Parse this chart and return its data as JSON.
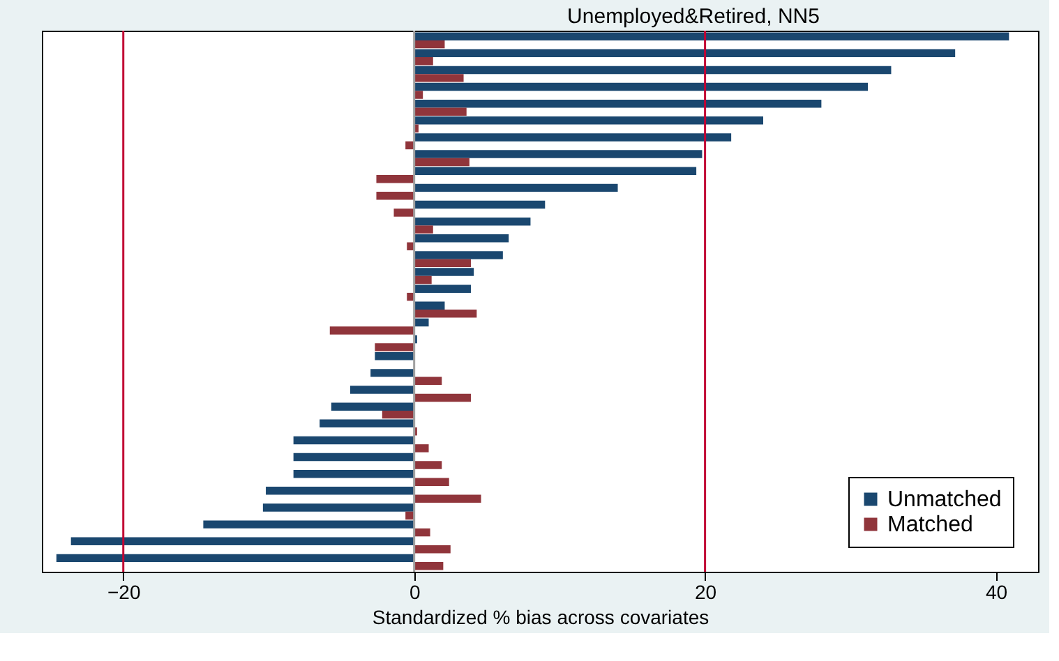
{
  "chart_data": {
    "type": "bar",
    "orientation": "horizontal",
    "title": "Unemployed&Retired, NN5",
    "xlabel": "Standardized % bias across covariates",
    "categories": [
      null,
      null,
      null,
      null,
      null,
      null,
      null,
      null,
      null,
      null,
      null,
      null,
      null,
      null,
      null,
      null,
      null,
      null,
      null,
      null,
      null,
      null,
      null,
      null,
      null,
      null,
      null,
      null,
      null,
      null,
      null,
      null
    ],
    "series": [
      {
        "name": "Unmatched",
        "color": "#1a476f",
        "values": [
          40.9,
          37.2,
          32.8,
          31.2,
          28,
          24,
          21.8,
          19.8,
          19.4,
          14,
          9,
          8,
          6.5,
          6.1,
          4.1,
          3.9,
          2.1,
          1,
          0.2,
          -2.7,
          -3,
          -4.4,
          -5.7,
          -6.5,
          -8.3,
          -8.3,
          -8.3,
          -10.2,
          -10.4,
          -14.5,
          -23.6,
          -24.6
        ]
      },
      {
        "name": "Matched",
        "color": "#90353b",
        "values": [
          2.1,
          1.3,
          3.4,
          0.6,
          3.6,
          0.3,
          -0.6,
          3.8,
          -2.6,
          -2.6,
          -1.4,
          1.3,
          -0.5,
          3.9,
          1.2,
          -0.5,
          4.3,
          -5.8,
          -2.7,
          null,
          1.9,
          3.9,
          -2.2,
          0.2,
          1,
          1.9,
          2.4,
          4.6,
          -0.6,
          1.1,
          2.5,
          2
        ]
      }
    ],
    "xlim": [
      -25.6,
      42.9
    ],
    "xticks": [
      -20,
      0,
      20,
      40
    ],
    "ref_lines": [
      {
        "axis": "x",
        "value": -20,
        "color": "#c10534"
      },
      {
        "axis": "x",
        "value": 20,
        "color": "#c10534"
      },
      {
        "axis": "x",
        "value": 0,
        "color": "#a0a0a0"
      }
    ],
    "grid": false,
    "legend": "bottom right",
    "tick_labels": "x"
  }
}
